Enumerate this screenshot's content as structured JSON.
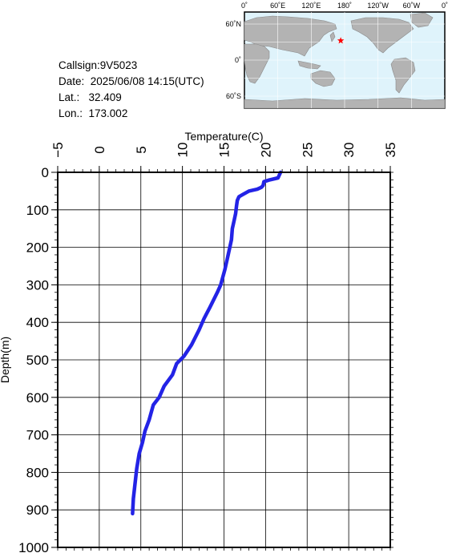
{
  "info": {
    "callsign": "Callsign:9V5023",
    "date": "Date:  2025/06/08 14:15(UTC)",
    "lat": "Lat.:   32.409",
    "lon": "Lon.:  173.002"
  },
  "map": {
    "top_labels": [
      "0˚",
      "60˚E",
      "120˚E",
      "180˚",
      "120˚W",
      "60˚W",
      "0˚"
    ],
    "side_labels": [
      "60˚N",
      "0˚",
      "60˚S"
    ],
    "marker_lat": 32.409,
    "marker_lon": 173.002,
    "ocean_color": "#dff3fb",
    "land_color": "#b3b3b3",
    "marker_color": "#ff0000",
    "marker_icon": "star-icon"
  },
  "chart_data": {
    "type": "line",
    "xlabel": "Temperature(C)",
    "ylabel": "Depth(m)",
    "xlim": [
      -5,
      35
    ],
    "ylim": [
      1000,
      0
    ],
    "x_axis_position": "top",
    "x_ticks": [
      -5,
      0,
      5,
      10,
      15,
      20,
      25,
      30,
      35
    ],
    "y_ticks": [
      0,
      100,
      200,
      300,
      400,
      500,
      600,
      700,
      800,
      900,
      1000
    ],
    "x_tick_labels": [
      "−5",
      "0",
      "5",
      "10",
      "15",
      "20",
      "25",
      "30",
      "35"
    ],
    "y_tick_labels": [
      "0",
      "100",
      "200",
      "300",
      "400",
      "500",
      "600",
      "700",
      "800",
      "900",
      "1000"
    ],
    "grid": true,
    "line_color": "#2323e6",
    "series": [
      {
        "x": [
          21.8,
          21.5,
          20.5,
          19.8,
          19.7,
          19.5,
          19.0,
          18.0,
          17.2,
          16.8,
          16.6,
          16.5,
          16.4,
          16.2,
          16.0,
          15.9,
          15.5,
          15.1,
          14.6,
          14.2,
          13.3,
          12.6,
          12.0,
          11.1,
          10.2,
          9.3,
          8.8,
          7.8,
          7.2,
          6.5,
          6.0,
          5.5,
          5.2,
          4.8,
          4.5,
          4.3,
          4.1,
          4.0
        ],
        "y": [
          0,
          15,
          20,
          25,
          35,
          40,
          45,
          50,
          60,
          65,
          75,
          90,
          110,
          130,
          150,
          180,
          220,
          260,
          300,
          320,
          360,
          390,
          420,
          460,
          490,
          510,
          540,
          570,
          600,
          620,
          660,
          690,
          720,
          750,
          790,
          830,
          870,
          910
        ]
      }
    ]
  }
}
